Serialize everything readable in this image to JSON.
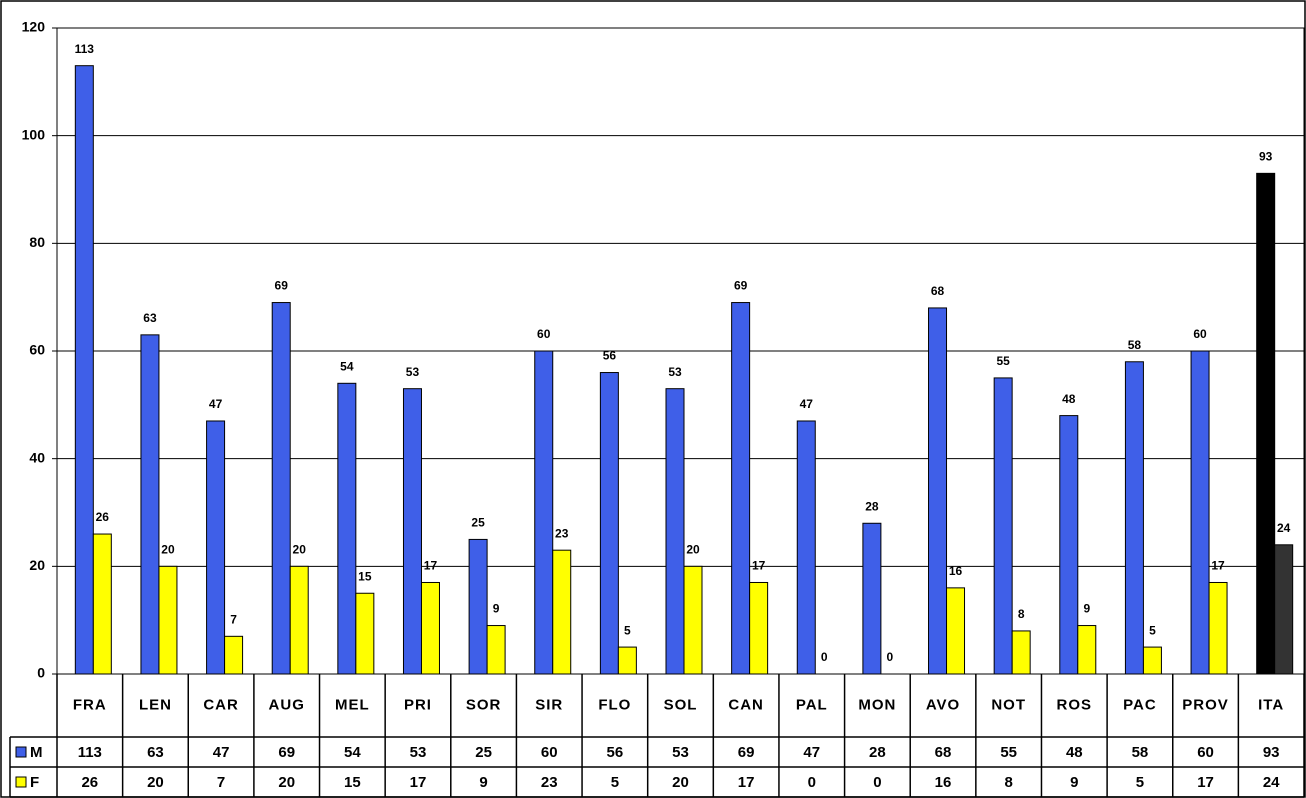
{
  "chart_data": {
    "type": "bar",
    "categories": [
      "FRA",
      "LEN",
      "CAR",
      "AUG",
      "MEL",
      "PRI",
      "SOR",
      "SIR",
      "FLO",
      "SOL",
      "CAN",
      "PAL",
      "MON",
      "AVO",
      "NOT",
      "ROS",
      "PAC",
      "PROV",
      "ITA"
    ],
    "series": [
      {
        "name": "M",
        "color": "#3f5fe8",
        "colors": [
          "#3f5fe8",
          "#3f5fe8",
          "#3f5fe8",
          "#3f5fe8",
          "#3f5fe8",
          "#3f5fe8",
          "#3f5fe8",
          "#3f5fe8",
          "#3f5fe8",
          "#3f5fe8",
          "#3f5fe8",
          "#3f5fe8",
          "#3f5fe8",
          "#3f5fe8",
          "#3f5fe8",
          "#3f5fe8",
          "#3f5fe8",
          "#3f5fe8",
          "#000000"
        ],
        "values": [
          113,
          63,
          47,
          69,
          54,
          53,
          25,
          60,
          56,
          53,
          69,
          47,
          28,
          68,
          55,
          48,
          58,
          60,
          93
        ]
      },
      {
        "name": "F",
        "color": "#ffff00",
        "colors": [
          "#ffff00",
          "#ffff00",
          "#ffff00",
          "#ffff00",
          "#ffff00",
          "#ffff00",
          "#ffff00",
          "#ffff00",
          "#ffff00",
          "#ffff00",
          "#ffff00",
          "#ffff00",
          "#ffff00",
          "#ffff00",
          "#ffff00",
          "#ffff00",
          "#ffff00",
          "#ffff00",
          "#333333"
        ],
        "values": [
          26,
          20,
          7,
          20,
          15,
          17,
          9,
          23,
          5,
          20,
          17,
          0,
          0,
          16,
          8,
          9,
          5,
          17,
          24
        ]
      }
    ],
    "ylim": [
      0,
      120
    ],
    "yticks": [
      0,
      20,
      40,
      60,
      80,
      100,
      120
    ],
    "grid": true,
    "data_table": true
  }
}
